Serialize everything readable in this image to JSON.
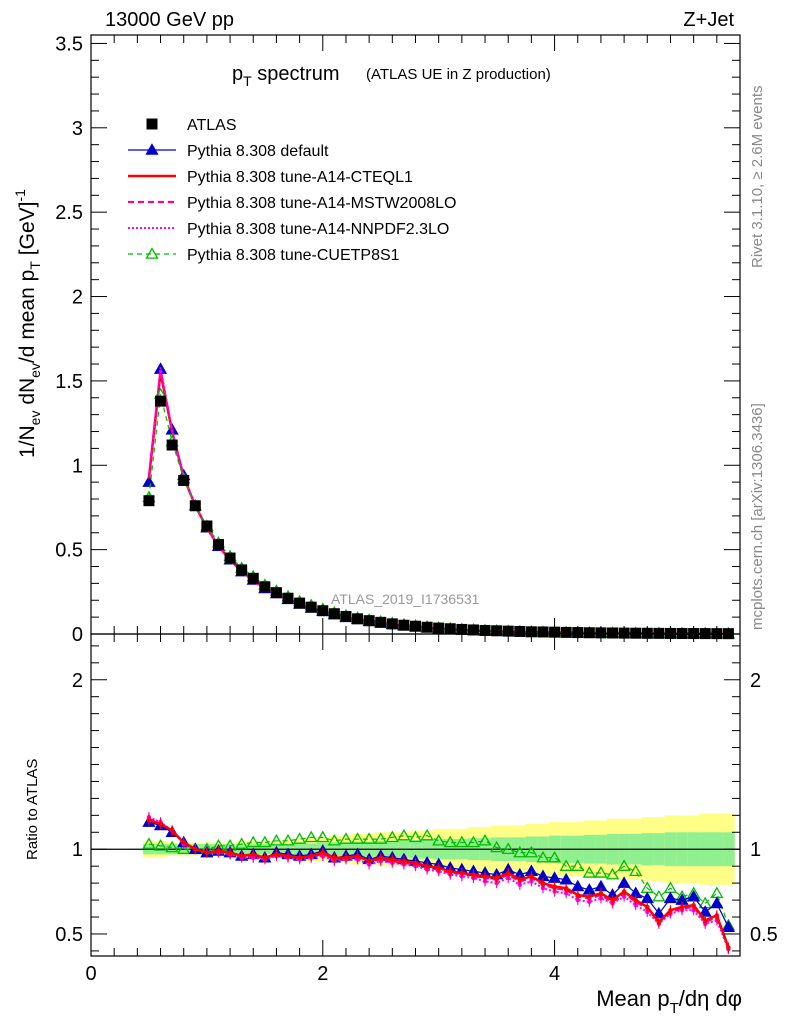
{
  "header": {
    "left": "13000 GeV pp",
    "right": "Z+Jet"
  },
  "title": {
    "main_p": "p",
    "main_sub": "T",
    "main_rest": " spectrum",
    "detail": "(ATLAS UE in Z production)"
  },
  "side_labels": {
    "rivet": "Rivet 3.1.10, ≥ 2.6M events",
    "mcplots": "mcplots.cern.ch [arXiv:1306.3436]"
  },
  "watermark": "ATLAS_2019_I1736531",
  "colors": {
    "atlas": "#000000",
    "default": "#0000cc",
    "cteql1": "#ff0000",
    "mstw": "#ff0088",
    "nnpdf": "#ff00ff",
    "cuetp": "#00bb00",
    "band_inner": "#90f090",
    "band_outer": "#ffff88"
  },
  "chart_data": [
    {
      "type": "scatter",
      "title": "pT spectrum (ATLAS UE in Z production)",
      "ylabel": "1/N_ev dN_ev/d mean p_T [GeV]^-1",
      "ylabel_parts": {
        "a": "1/N",
        "a_sub": "ev",
        "b": " dN",
        "b_sub": "ev",
        "c": "/d mean p",
        "c_sub": "T",
        "d": " [GeV]",
        "d_sup": "-1"
      },
      "xlim": [
        0,
        5.6
      ],
      "ylim": [
        0,
        3.55
      ],
      "yticks": [
        0,
        0.5,
        1,
        1.5,
        2,
        2.5,
        3,
        3.5
      ],
      "ytick_labels": [
        "0",
        "0.5",
        "1",
        "1.5",
        "2",
        "2.5",
        "3",
        "3.5"
      ],
      "x": [
        0.5,
        0.6,
        0.7,
        0.8,
        0.9,
        1.0,
        1.1,
        1.2,
        1.3,
        1.4,
        1.5,
        1.6,
        1.7,
        1.8,
        1.9,
        2.0,
        2.1,
        2.2,
        2.3,
        2.4,
        2.5,
        2.6,
        2.7,
        2.8,
        2.9,
        3.0,
        3.1,
        3.2,
        3.3,
        3.4,
        3.5,
        3.6,
        3.7,
        3.8,
        3.9,
        4.0,
        4.1,
        4.2,
        4.3,
        4.4,
        4.5,
        4.6,
        4.7,
        4.8,
        4.9,
        5.0,
        5.1,
        5.2,
        5.3,
        5.4,
        5.5
      ],
      "legend_position": "top-left",
      "series": [
        {
          "name": "ATLAS",
          "values": [
            0.79,
            1.38,
            1.12,
            0.91,
            0.76,
            0.64,
            0.53,
            0.45,
            0.38,
            0.33,
            0.28,
            0.245,
            0.212,
            0.183,
            0.159,
            0.138,
            0.12,
            0.104,
            0.09,
            0.079,
            0.069,
            0.06,
            0.052,
            0.046,
            0.04,
            0.035,
            0.031,
            0.027,
            0.024,
            0.021,
            0.019,
            0.017,
            0.015,
            0.013,
            0.012,
            0.011,
            0.0095,
            0.0085,
            0.0075,
            0.0067,
            0.006,
            0.0053,
            0.0047,
            0.0042,
            0.0038,
            0.0034,
            0.003,
            0.0027,
            0.0024,
            0.0022,
            0.002
          ]
        },
        {
          "name": "Pythia 8.308 default",
          "values": [
            0.9,
            1.57,
            1.21,
            0.94,
            0.76,
            0.63,
            0.52,
            0.44,
            0.37,
            0.32,
            0.27,
            0.24,
            0.205,
            0.178,
            0.154,
            0.135,
            0.115,
            0.099,
            0.087,
            0.075,
            0.066,
            0.057,
            0.049,
            0.043,
            0.037,
            0.032,
            0.028,
            0.024,
            0.021,
            0.019,
            0.017,
            0.015,
            0.013,
            0.011,
            0.0102,
            0.0092,
            0.0079,
            0.007,
            0.0061,
            0.0054,
            0.0048,
            0.0042,
            0.0037,
            0.0033,
            0.0029,
            0.0026,
            0.0023,
            0.002,
            0.0018,
            0.0016,
            0.0015
          ]
        },
        {
          "name": "Pythia 8.308 tune-A14-CTEQL1",
          "values": [
            0.92,
            1.55,
            1.2,
            0.93,
            0.76,
            0.63,
            0.52,
            0.44,
            0.37,
            0.32,
            0.27,
            0.238,
            0.204,
            0.177,
            0.153,
            0.134,
            0.114,
            0.098,
            0.086,
            0.074,
            0.065,
            0.056,
            0.048,
            0.042,
            0.036,
            0.031,
            0.027,
            0.023,
            0.02,
            0.018,
            0.016,
            0.014,
            0.012,
            0.0105,
            0.0095,
            0.0085,
            0.0073,
            0.0065,
            0.0056,
            0.005,
            0.0044,
            0.0039,
            0.0034,
            0.003,
            0.0026,
            0.0023,
            0.0021,
            0.0018,
            0.0016,
            0.0014,
            0.0013
          ]
        },
        {
          "name": "Pythia 8.308 tune-A14-MSTW2008LO",
          "values": [
            0.93,
            1.56,
            1.2,
            0.93,
            0.76,
            0.63,
            0.52,
            0.44,
            0.37,
            0.32,
            0.27,
            0.237,
            0.203,
            0.176,
            0.152,
            0.133,
            0.113,
            0.097,
            0.085,
            0.073,
            0.064,
            0.055,
            0.047,
            0.041,
            0.035,
            0.03,
            0.027,
            0.023,
            0.02,
            0.018,
            0.016,
            0.014,
            0.012,
            0.0102,
            0.0093,
            0.0083,
            0.0071,
            0.0063,
            0.0055,
            0.0049,
            0.0043,
            0.0038,
            0.0033,
            0.0029,
            0.0025,
            0.0022,
            0.002,
            0.0017,
            0.0015,
            0.0013,
            0.0012
          ]
        },
        {
          "name": "Pythia 8.308 tune-A14-NNPDF2.3LO",
          "values": [
            0.94,
            1.58,
            1.21,
            0.93,
            0.76,
            0.63,
            0.52,
            0.44,
            0.37,
            0.31,
            0.27,
            0.236,
            0.201,
            0.174,
            0.15,
            0.131,
            0.111,
            0.095,
            0.083,
            0.071,
            0.062,
            0.054,
            0.046,
            0.04,
            0.034,
            0.029,
            0.026,
            0.022,
            0.019,
            0.017,
            0.015,
            0.013,
            0.0115,
            0.0098,
            0.0088,
            0.0079,
            0.0068,
            0.006,
            0.0052,
            0.0046,
            0.0041,
            0.0036,
            0.0031,
            0.0027,
            0.0024,
            0.0021,
            0.0019,
            0.0016,
            0.0014,
            0.0012,
            0.0011
          ]
        },
        {
          "name": "Pythia 8.308 tune-CUETP8S1",
          "values": [
            0.81,
            1.42,
            1.14,
            0.92,
            0.76,
            0.64,
            0.54,
            0.46,
            0.39,
            0.34,
            0.29,
            0.255,
            0.222,
            0.193,
            0.17,
            0.148,
            0.126,
            0.109,
            0.095,
            0.084,
            0.073,
            0.064,
            0.056,
            0.049,
            0.043,
            0.037,
            0.032,
            0.028,
            0.025,
            0.022,
            0.019,
            0.017,
            0.0146,
            0.0128,
            0.0114,
            0.0102,
            0.0088,
            0.0078,
            0.0069,
            0.0061,
            0.0054,
            0.0048,
            0.0041,
            0.0036,
            0.0032,
            0.0029,
            0.0026,
            0.0023,
            0.002,
            0.0018,
            0.0016
          ]
        }
      ]
    },
    {
      "type": "scatter",
      "title": "",
      "xlabel": "Mean p_T/dη dφ",
      "xlabel_parts": {
        "a": "Mean p",
        "a_sub": "T",
        "b": "/dη dφ"
      },
      "ylabel": "Ratio to ATLAS",
      "xlim": [
        0,
        5.6
      ],
      "ylim": [
        0.37,
        2.27
      ],
      "xticks": [
        0,
        2,
        4
      ],
      "xtick_labels": [
        "0",
        "2",
        "4"
      ],
      "yticks": [
        0.5,
        1,
        2
      ],
      "ytick_labels": [
        "0.5",
        "1",
        "2"
      ],
      "ytick_labels_right": [
        "0.5",
        "1",
        "2"
      ],
      "x": [
        0.5,
        0.6,
        0.7,
        0.8,
        0.9,
        1.0,
        1.1,
        1.2,
        1.3,
        1.4,
        1.5,
        1.6,
        1.7,
        1.8,
        1.9,
        2.0,
        2.1,
        2.2,
        2.3,
        2.4,
        2.5,
        2.6,
        2.7,
        2.8,
        2.9,
        3.0,
        3.1,
        3.2,
        3.3,
        3.4,
        3.5,
        3.6,
        3.7,
        3.8,
        3.9,
        4.0,
        4.1,
        4.2,
        4.3,
        4.4,
        4.5,
        4.6,
        4.7,
        4.8,
        4.9,
        5.0,
        5.1,
        5.2,
        5.3,
        5.4,
        5.5
      ],
      "band_inner_halfwidth": [
        0.03,
        0.03,
        0.03,
        0.03,
        0.03,
        0.03,
        0.03,
        0.03,
        0.03,
        0.03,
        0.03,
        0.03,
        0.03,
        0.035,
        0.035,
        0.04,
        0.04,
        0.04,
        0.045,
        0.045,
        0.05,
        0.05,
        0.05,
        0.055,
        0.055,
        0.06,
        0.06,
        0.06,
        0.065,
        0.065,
        0.07,
        0.07,
        0.07,
        0.075,
        0.075,
        0.08,
        0.08,
        0.08,
        0.085,
        0.085,
        0.09,
        0.09,
        0.09,
        0.095,
        0.095,
        0.1,
        0.1,
        0.1,
        0.1,
        0.1,
        0.1
      ],
      "band_outer_halfwidth": [
        0.05,
        0.05,
        0.04,
        0.04,
        0.04,
        0.04,
        0.04,
        0.04,
        0.05,
        0.05,
        0.05,
        0.05,
        0.06,
        0.06,
        0.07,
        0.07,
        0.08,
        0.08,
        0.09,
        0.09,
        0.1,
        0.1,
        0.1,
        0.11,
        0.11,
        0.12,
        0.12,
        0.12,
        0.13,
        0.13,
        0.14,
        0.14,
        0.14,
        0.15,
        0.15,
        0.16,
        0.16,
        0.16,
        0.17,
        0.17,
        0.18,
        0.18,
        0.18,
        0.19,
        0.19,
        0.2,
        0.2,
        0.2,
        0.21,
        0.21,
        0.21
      ],
      "series": [
        {
          "name": "Pythia 8.308 default",
          "values": [
            1.16,
            1.14,
            1.1,
            1.04,
            1.0,
            0.98,
            0.99,
            0.98,
            0.96,
            0.97,
            0.95,
            0.98,
            0.97,
            0.96,
            0.97,
            0.99,
            0.95,
            0.96,
            0.97,
            0.94,
            0.96,
            0.95,
            0.94,
            0.93,
            0.92,
            0.91,
            0.89,
            0.88,
            0.87,
            0.86,
            0.85,
            0.88,
            0.85,
            0.87,
            0.84,
            0.83,
            0.82,
            0.78,
            0.76,
            0.78,
            0.73,
            0.8,
            0.74,
            0.71,
            0.62,
            0.71,
            0.7,
            0.72,
            0.63,
            0.68,
            0.54
          ]
        },
        {
          "name": "Pythia 8.308 tune-A14-CTEQL1",
          "values": [
            1.17,
            1.15,
            1.11,
            1.04,
            1.0,
            0.98,
            0.99,
            0.98,
            0.96,
            0.97,
            0.95,
            0.97,
            0.96,
            0.95,
            0.96,
            0.98,
            0.95,
            0.95,
            0.96,
            0.93,
            0.95,
            0.94,
            0.93,
            0.92,
            0.9,
            0.89,
            0.87,
            0.86,
            0.85,
            0.84,
            0.83,
            0.86,
            0.82,
            0.84,
            0.8,
            0.78,
            0.77,
            0.73,
            0.72,
            0.74,
            0.7,
            0.75,
            0.7,
            0.66,
            0.57,
            0.64,
            0.66,
            0.67,
            0.58,
            0.61,
            0.42
          ]
        },
        {
          "name": "Pythia 8.308 tune-A14-MSTW2008LO",
          "values": [
            1.18,
            1.15,
            1.11,
            1.04,
            1.0,
            0.98,
            0.99,
            0.97,
            0.96,
            0.96,
            0.95,
            0.97,
            0.96,
            0.95,
            0.96,
            0.97,
            0.94,
            0.95,
            0.95,
            0.93,
            0.94,
            0.93,
            0.92,
            0.91,
            0.89,
            0.88,
            0.86,
            0.86,
            0.84,
            0.83,
            0.82,
            0.85,
            0.81,
            0.83,
            0.79,
            0.77,
            0.76,
            0.72,
            0.71,
            0.73,
            0.69,
            0.74,
            0.69,
            0.65,
            0.57,
            0.63,
            0.65,
            0.66,
            0.57,
            0.6,
            0.42
          ]
        },
        {
          "name": "Pythia 8.308 tune-A14-NNPDF2.3LO",
          "values": [
            1.19,
            1.16,
            1.11,
            1.03,
            1.0,
            0.98,
            0.98,
            0.97,
            0.95,
            0.95,
            0.94,
            0.96,
            0.95,
            0.94,
            0.95,
            0.96,
            0.93,
            0.94,
            0.94,
            0.91,
            0.93,
            0.92,
            0.91,
            0.9,
            0.88,
            0.87,
            0.85,
            0.84,
            0.83,
            0.81,
            0.8,
            0.83,
            0.79,
            0.81,
            0.77,
            0.75,
            0.74,
            0.7,
            0.69,
            0.71,
            0.68,
            0.72,
            0.67,
            0.63,
            0.56,
            0.62,
            0.64,
            0.64,
            0.56,
            0.58,
            0.41
          ]
        },
        {
          "name": "Pythia 8.308 tune-CUETP8S1",
          "values": [
            1.03,
            1.02,
            1.01,
            1.0,
            1.0,
            1.0,
            1.02,
            1.02,
            1.03,
            1.04,
            1.04,
            1.05,
            1.05,
            1.06,
            1.07,
            1.07,
            1.05,
            1.06,
            1.06,
            1.06,
            1.06,
            1.07,
            1.08,
            1.07,
            1.08,
            1.05,
            1.04,
            1.04,
            1.04,
            1.05,
            1.01,
            1.0,
            0.98,
            0.98,
            0.95,
            0.95,
            0.9,
            0.9,
            0.86,
            0.86,
            0.85,
            0.9,
            0.87,
            0.77,
            0.72,
            0.77,
            0.72,
            0.74,
            0.68,
            0.74,
            0.55
          ]
        }
      ]
    }
  ]
}
